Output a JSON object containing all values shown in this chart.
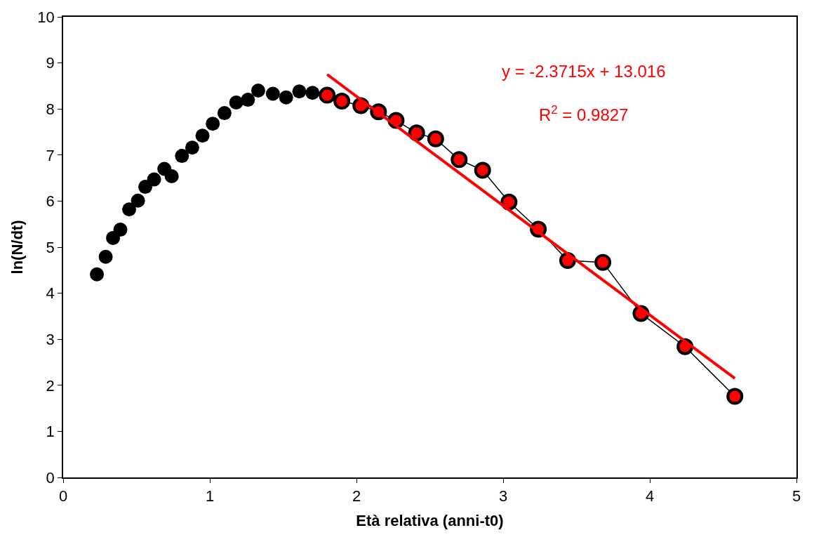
{
  "chart_data": {
    "type": "scatter",
    "xlabel": "Età relativa (anni-t0)",
    "ylabel": "ln(N/dt)",
    "xlim": [
      0,
      5
    ],
    "xticks": [
      0,
      1,
      2,
      3,
      4,
      5
    ],
    "ylim": [
      0,
      10
    ],
    "yticks": [
      0,
      1,
      2,
      3,
      4,
      5,
      6,
      7,
      8,
      9,
      10
    ],
    "series": [
      {
        "type": "scatter",
        "marker": "circle",
        "color": "#000000",
        "x": [
          0.23,
          0.29,
          0.34,
          0.39,
          0.45,
          0.51,
          0.56,
          0.62,
          0.69,
          0.74,
          0.81,
          0.88,
          0.95,
          1.02,
          1.1,
          1.18,
          1.26,
          1.33,
          1.43,
          1.52,
          1.61,
          1.7
        ],
        "values": [
          4.41,
          4.79,
          5.2,
          5.38,
          5.82,
          6.01,
          6.31,
          6.47,
          6.7,
          6.54,
          6.98,
          7.16,
          7.42,
          7.68,
          7.91,
          8.14,
          8.2,
          8.4,
          8.33,
          8.25,
          8.38,
          8.35
        ]
      },
      {
        "type": "line",
        "marker": "circle",
        "line_style": "solid",
        "color": "#ff0000",
        "x": [
          1.8,
          1.9,
          2.03,
          2.15,
          2.27,
          2.41,
          2.54,
          2.7,
          2.86,
          3.04,
          3.24,
          3.44,
          3.68,
          3.94,
          4.24,
          4.58
        ],
        "values": [
          8.3,
          8.17,
          8.07,
          7.94,
          7.75,
          7.48,
          7.35,
          6.9,
          6.67,
          5.98,
          5.39,
          4.71,
          4.67,
          3.56,
          2.84,
          1.76
        ]
      },
      {
        "type": "line",
        "marker": "none",
        "line_style": "solid",
        "color": "#ff0000",
        "x": [
          1.8,
          4.58
        ],
        "values": [
          8.75,
          2.15
        ]
      }
    ],
    "annotations": [
      "y = -2.3715x + 13.016",
      "R$^{2}$ = 0.9827"
    ]
  }
}
